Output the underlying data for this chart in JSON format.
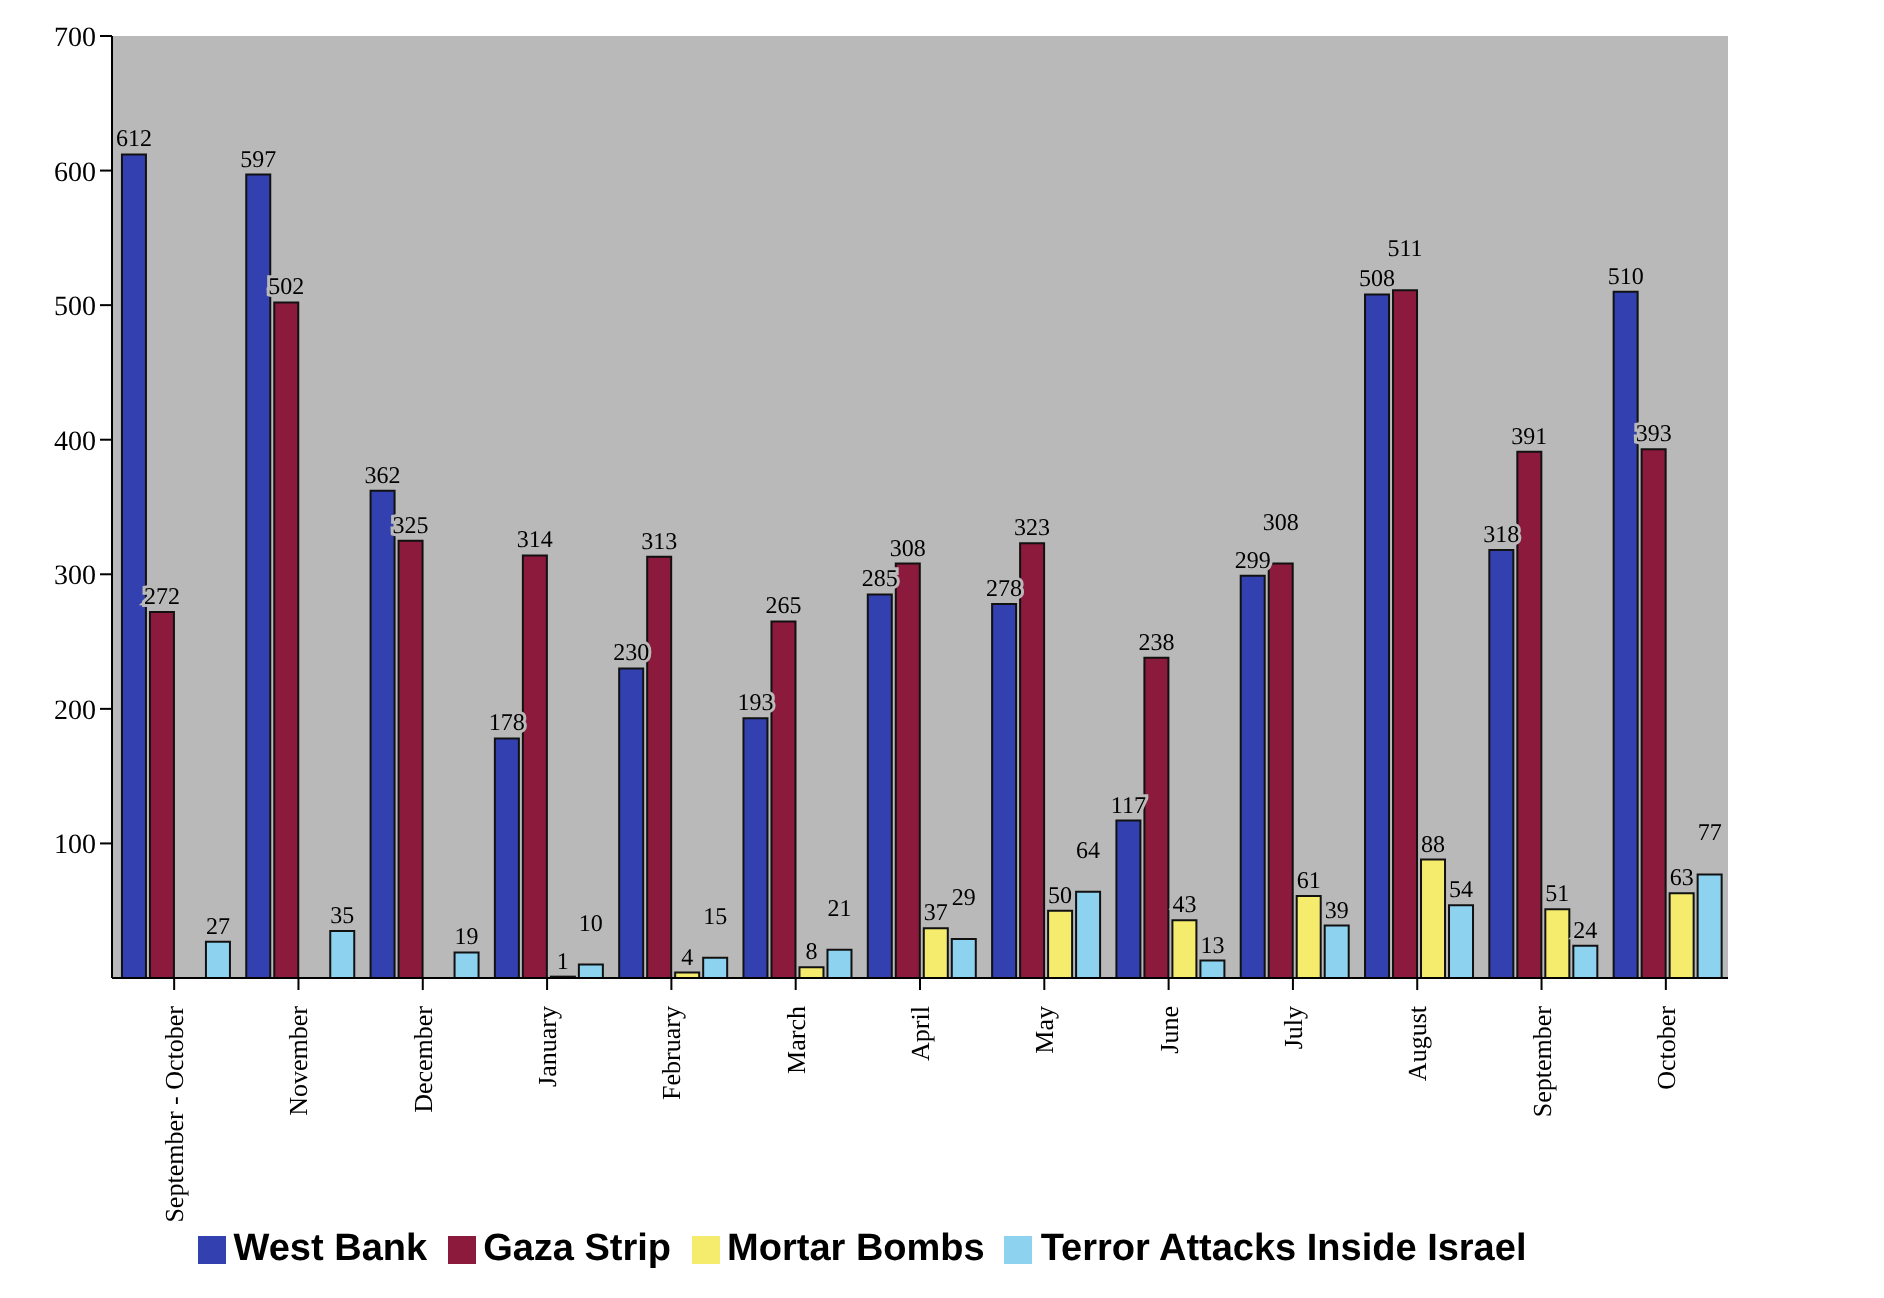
{
  "chart_data": {
    "type": "bar",
    "categories": [
      "September - October",
      "November",
      "December",
      "January",
      "February",
      "March",
      "April",
      "May",
      "June",
      "July",
      "August",
      "September",
      "October"
    ],
    "series": [
      {
        "name": "West Bank",
        "color": "#3340b0",
        "values": [
          612,
          597,
          362,
          178,
          230,
          193,
          285,
          278,
          117,
          299,
          508,
          318,
          510
        ]
      },
      {
        "name": "Gaza Strip",
        "color": "#8b1a3c",
        "values": [
          272,
          502,
          325,
          314,
          313,
          265,
          308,
          323,
          238,
          308,
          511,
          391,
          393
        ]
      },
      {
        "name": "Mortar Bombs",
        "color": "#f5ec6e",
        "values": [
          null,
          null,
          null,
          1,
          4,
          8,
          37,
          50,
          43,
          61,
          88,
          51,
          63
        ]
      },
      {
        "name": "Terror Attacks Inside Israel",
        "color": "#8dd3f0",
        "values": [
          27,
          35,
          19,
          10,
          15,
          21,
          29,
          64,
          13,
          39,
          54,
          24,
          77
        ]
      }
    ],
    "ylim": [
      0,
      700
    ],
    "yticks": [
      100,
      200,
      300,
      400,
      500,
      600,
      700
    ],
    "data_labels": true,
    "grid": false,
    "legend": "bottom"
  }
}
